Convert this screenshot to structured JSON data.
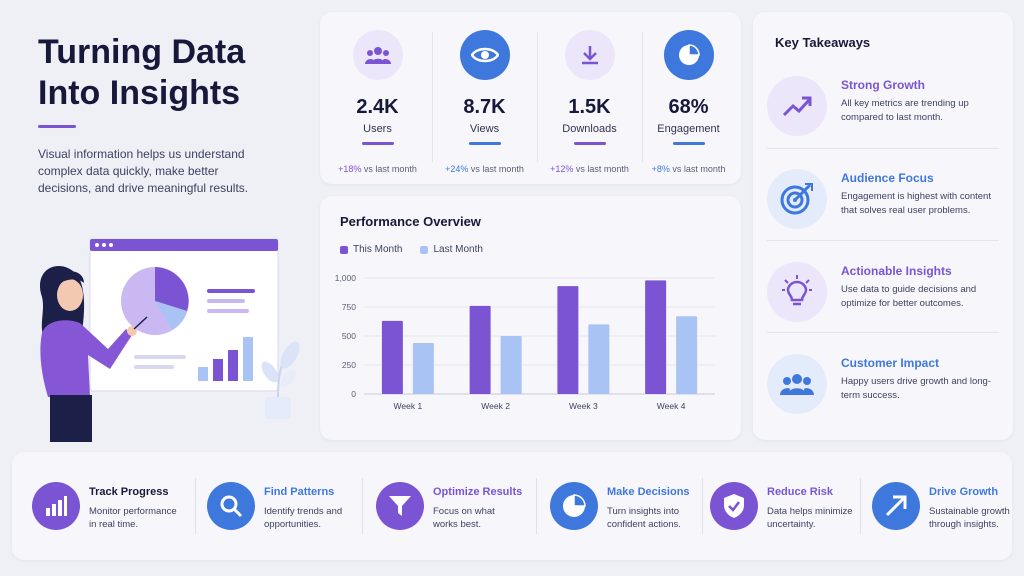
{
  "hero": {
    "title_line1": "Turning Data",
    "title_line2": "Into Insights",
    "description": "Visual information helps us understand complex data quickly, make better decisions, and drive meaningful results."
  },
  "colors": {
    "purple": "#7b54d4",
    "blue": "#3f78dc",
    "light_purple": "#ece6fa",
    "light_blue": "#e4ecfb",
    "series_this_month": "#7b54d4",
    "series_last_month": "#a9c3f5"
  },
  "stats": [
    {
      "icon": "users-icon",
      "value": "2.4K",
      "label": "Users",
      "change_pct": "+18%",
      "change_text": " vs last month",
      "accent": "#7b54d4",
      "bg": "#ece6fa"
    },
    {
      "icon": "eye-icon",
      "value": "8.7K",
      "label": "Views",
      "change_pct": "+24%",
      "change_text": " vs last month",
      "accent": "#3f78dc",
      "bg": "#3f78dc"
    },
    {
      "icon": "download-icon",
      "value": "1.5K",
      "label": "Downloads",
      "change_pct": "+12%",
      "change_text": " vs last month",
      "accent": "#7b54d4",
      "bg": "#ece6fa"
    },
    {
      "icon": "pie-chart-icon",
      "value": "68%",
      "label": "Engagement",
      "change_pct": "+8%",
      "change_text": " vs last month",
      "accent": "#3f78dc",
      "bg": "#3f78dc"
    }
  ],
  "chart_data": {
    "type": "bar",
    "title": "Performance Overview",
    "categories": [
      "Week 1",
      "Week 2",
      "Week 3",
      "Week 4"
    ],
    "series": [
      {
        "name": "This Month",
        "values": [
          630,
          760,
          930,
          980
        ]
      },
      {
        "name": "Last Month",
        "values": [
          440,
          500,
          600,
          670
        ]
      }
    ],
    "ylim": [
      0,
      1000
    ],
    "yticks": [
      0,
      250,
      500,
      750,
      1000
    ],
    "ytick_labels": [
      "0",
      "250",
      "500",
      "750",
      "1,000"
    ],
    "grid": true,
    "legend": "top-left"
  },
  "takeaways": {
    "title": "Key Takeaways",
    "items": [
      {
        "icon": "trend-up-icon",
        "heading": "Strong Growth",
        "text": "All key metrics are trending up compared to last month.",
        "color": "#7b54d4",
        "bg": "#ece6fa"
      },
      {
        "icon": "target-icon",
        "heading": "Audience Focus",
        "text": "Engagement is highest with content that solves real user problems.",
        "color": "#3f78dc",
        "bg": "#e4ecfb"
      },
      {
        "icon": "lightbulb-icon",
        "heading": "Actionable Insights",
        "text": "Use data to guide decisions and optimize for better outcomes.",
        "color": "#7b54d4",
        "bg": "#ece6fa"
      },
      {
        "icon": "customers-icon",
        "heading": "Customer Impact",
        "text": "Happy users drive growth and long-term success.",
        "color": "#3f78dc",
        "bg": "#e4ecfb"
      }
    ]
  },
  "bottom": [
    {
      "icon": "bar-chart-icon",
      "heading": "Track Progress",
      "text": "Monitor performance in real time.",
      "color": "#17183a",
      "bg": "#7b54d4"
    },
    {
      "icon": "magnifier-icon",
      "heading": "Find Patterns",
      "text": "Identify trends and opportunities.",
      "color": "#3f78dc",
      "bg": "#3f78dc"
    },
    {
      "icon": "funnel-icon",
      "heading": "Optimize Results",
      "text": "Focus on what works best.",
      "color": "#7b54d4",
      "bg": "#7b54d4"
    },
    {
      "icon": "pie-chart-icon",
      "heading": "Make Decisions",
      "text": "Turn insights into confident actions.",
      "color": "#3f78dc",
      "bg": "#3f78dc"
    },
    {
      "icon": "shield-check-icon",
      "heading": "Reduce Risk",
      "text": "Data helps minimize uncertainty.",
      "color": "#7b54d4",
      "bg": "#7b54d4"
    },
    {
      "icon": "arrow-up-right-icon",
      "heading": "Drive Growth",
      "text": "Sustainable growth through insights.",
      "color": "#3f78dc",
      "bg": "#3f78dc"
    }
  ]
}
